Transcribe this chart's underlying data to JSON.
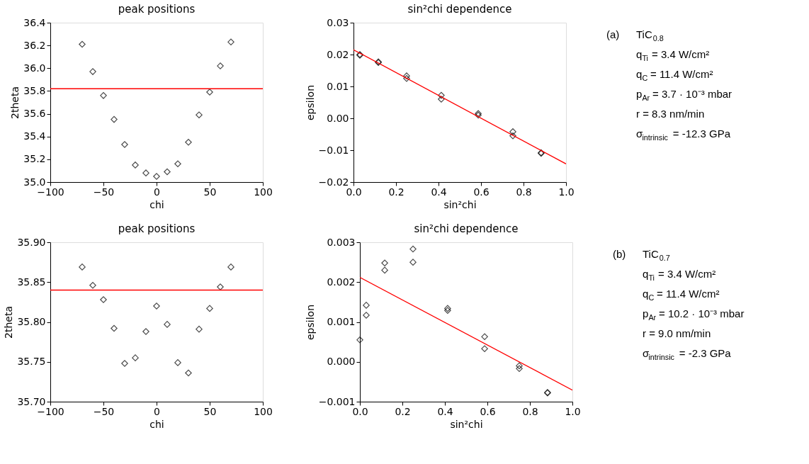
{
  "chart_data": [
    {
      "type": "scatter",
      "title": "peak positions",
      "xlabel": "chi",
      "ylabel": "2theta",
      "marker": "diamond",
      "grid": false,
      "xlim": [
        -100,
        100
      ],
      "xticks": [
        {
          "value": -100,
          "label": "−100"
        },
        {
          "value": -50,
          "label": "−50"
        },
        0,
        50,
        100
      ],
      "ylim": [
        35.0,
        36.4
      ],
      "yticks": [
        {
          "value": 35.0,
          "label": "35.0"
        },
        35.2,
        35.4,
        35.6,
        35.8,
        {
          "value": 36.0,
          "label": "36.0"
        },
        36.2,
        36.4
      ],
      "ref_lines": [
        {
          "axis": "y",
          "value": 35.82,
          "color": "#ff0000"
        }
      ],
      "series": [
        {
          "type": "scatter",
          "color": "#000000",
          "x": [
            -70,
            -60,
            -50,
            -40,
            -30,
            -20,
            -10,
            0,
            10,
            20,
            30,
            40,
            50,
            60,
            70
          ],
          "values": [
            36.21,
            35.97,
            35.76,
            35.55,
            35.33,
            35.15,
            35.08,
            35.05,
            35.09,
            35.16,
            35.35,
            35.59,
            35.79,
            36.02,
            36.23
          ]
        }
      ]
    },
    {
      "type": "scatter",
      "title": "sin²chi dependence",
      "xlabel": "sin²chi",
      "ylabel": "epsilon",
      "marker": "diamond",
      "grid": false,
      "xlim": [
        0.0,
        1.0
      ],
      "xticks": [
        {
          "value": 0.0,
          "label": "0.0"
        },
        0.2,
        0.4,
        0.6,
        0.8,
        {
          "value": 1.0,
          "label": "1.0"
        }
      ],
      "ylim": [
        -0.02,
        0.03
      ],
      "yticks": [
        {
          "value": -0.02,
          "label": "−0.02"
        },
        {
          "value": -0.01,
          "label": "−0.01"
        },
        {
          "value": 0.0,
          "label": "0.00"
        },
        0.01,
        0.02,
        0.03
      ],
      "series": [
        {
          "type": "scatter",
          "color": "#000000",
          "x": [
            0.03,
            0.03,
            0.117,
            0.117,
            0.25,
            0.25,
            0.413,
            0.413,
            0.587,
            0.587,
            0.75,
            0.75,
            0.883,
            0.883
          ],
          "values": [
            0.0198,
            0.02,
            0.0175,
            0.0177,
            0.0133,
            0.0125,
            0.0072,
            0.006,
            0.0015,
            0.001,
            -0.0042,
            -0.0055,
            -0.0108,
            -0.011
          ]
        },
        {
          "type": "line",
          "color": "#ff0000",
          "marker": "none",
          "line_style": "solid",
          "x": [
            0.0,
            1.0
          ],
          "values": [
            0.0215,
            -0.0143
          ]
        }
      ]
    },
    {
      "type": "other",
      "annotations": [
        "(a)",
        "TiC$_{0.8}$",
        "q$_{Ti}$ = 3.4 W/cm²",
        "q$_{C}$ = 11.4 W/cm²",
        "p$_{Ar}$ = 3.7 · 10⁻³ mbar",
        "r = 8.3 nm/min",
        "σ$_{intrinsic}$ = -12.3 GPa"
      ]
    },
    {
      "type": "scatter",
      "title": "peak positions",
      "xlabel": "chi",
      "ylabel": "2theta",
      "marker": "diamond",
      "grid": false,
      "xlim": [
        -100,
        100
      ],
      "xticks": [
        {
          "value": -100,
          "label": "−100"
        },
        {
          "value": -50,
          "label": "−50"
        },
        0,
        50,
        100
      ],
      "ylim": [
        35.7,
        35.9
      ],
      "yticks": [
        {
          "value": 35.7,
          "label": "35.70"
        },
        35.75,
        {
          "value": 35.8,
          "label": "35.80"
        },
        35.85,
        {
          "value": 35.9,
          "label": "35.90"
        }
      ],
      "ref_lines": [
        {
          "axis": "y",
          "value": 35.84,
          "color": "#ff0000"
        }
      ],
      "series": [
        {
          "type": "scatter",
          "color": "#000000",
          "x": [
            -70,
            -60,
            -50,
            -40,
            -30,
            -20,
            -10,
            0,
            10,
            20,
            30,
            40,
            50,
            60,
            70
          ],
          "values": [
            35.869,
            35.846,
            35.828,
            35.792,
            35.748,
            35.755,
            35.788,
            35.82,
            35.797,
            35.749,
            35.736,
            35.791,
            35.817,
            35.844,
            35.869
          ]
        }
      ]
    },
    {
      "type": "scatter",
      "title": "sin²chi dependence",
      "xlabel": "sin²chi",
      "ylabel": "epsilon",
      "marker": "diamond",
      "grid": false,
      "xlim": [
        0.0,
        1.0
      ],
      "xticks": [
        {
          "value": 0.0,
          "label": "0.0"
        },
        0.2,
        0.4,
        0.6,
        0.8,
        {
          "value": 1.0,
          "label": "1.0"
        }
      ],
      "ylim": [
        -0.001,
        0.003
      ],
      "yticks": [
        {
          "value": -0.001,
          "label": "−0.001"
        },
        {
          "value": 0.0,
          "label": "0.000"
        },
        0.001,
        0.002,
        0.003
      ],
      "series": [
        {
          "type": "scatter",
          "color": "#000000",
          "x": [
            0.0,
            0.03,
            0.03,
            0.117,
            0.117,
            0.25,
            0.25,
            0.413,
            0.413,
            0.587,
            0.587,
            0.75,
            0.75,
            0.883,
            0.883
          ],
          "values": [
            0.00055,
            0.00142,
            0.00117,
            0.00248,
            0.0023,
            0.00283,
            0.0025,
            0.00134,
            0.00129,
            0.00063,
            0.00033,
            -0.0001,
            -0.00017,
            -0.00077,
            -0.00078
          ]
        },
        {
          "type": "line",
          "color": "#ff0000",
          "marker": "none",
          "line_style": "solid",
          "x": [
            0.0,
            1.0
          ],
          "values": [
            0.00212,
            -0.00071
          ]
        }
      ]
    },
    {
      "type": "other",
      "annotations": [
        "(b)",
        "TiC$_{0.7}$",
        "q$_{Ti}$ = 3.4 W/cm²",
        "q$_{C}$ = 11.4 W/cm²",
        "p$_{Ar}$ = 10.2 · 10⁻³ mbar",
        "r = 9.0 nm/min",
        "σ$_{intrinsic}$ = -2.3 GPa"
      ]
    }
  ]
}
